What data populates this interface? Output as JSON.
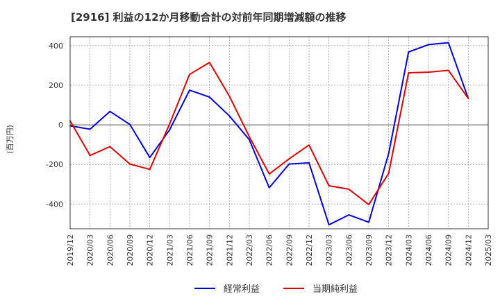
{
  "chart_data": {
    "type": "line",
    "title": "[2916]  利益の12か月移動合計の対前年同期増減額の推移",
    "xlabel": "",
    "ylabel": "(百万円)",
    "ylim": [
      -525,
      445
    ],
    "yticks": [
      -400,
      -200,
      0,
      200,
      400
    ],
    "grid": true,
    "legend_position": "bottom",
    "categories": [
      "2019/12",
      "2020/03",
      "2020/06",
      "2020/09",
      "2020/12",
      "2021/03",
      "2021/06",
      "2021/09",
      "2021/12",
      "2022/03",
      "2022/06",
      "2022/09",
      "2022/12",
      "2023/03",
      "2023/06",
      "2023/09",
      "2023/12",
      "2024/03",
      "2024/06",
      "2024/09",
      "2024/12",
      "2025/03"
    ],
    "series": [
      {
        "name": "経常利益",
        "color": "#0000dd",
        "values": [
          -5,
          -22,
          68,
          2,
          -165,
          -25,
          175,
          140,
          45,
          -75,
          -318,
          -198,
          -192,
          -505,
          -455,
          -492,
          -145,
          368,
          405,
          415,
          133,
          null
        ]
      },
      {
        "name": "当期純利益",
        "color": "#dd0000",
        "values": [
          20,
          -155,
          -110,
          -198,
          -225,
          5,
          255,
          315,
          145,
          -60,
          -248,
          -172,
          -102,
          -308,
          -325,
          -403,
          -245,
          263,
          266,
          275,
          133,
          null
        ]
      }
    ]
  }
}
